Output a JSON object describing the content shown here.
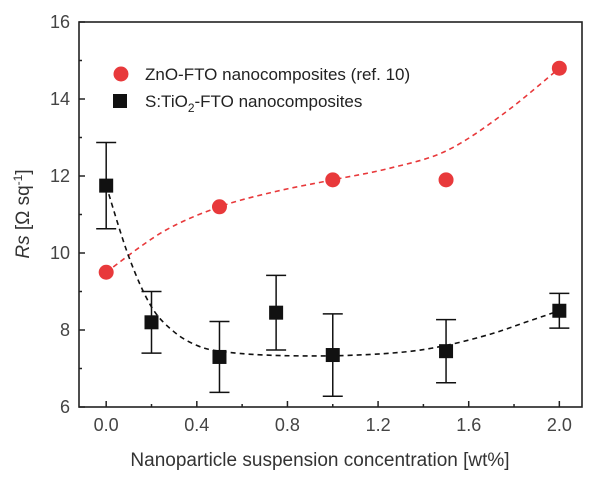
{
  "chart_data": {
    "type": "scatter",
    "xlabel": "Nanoparticle suspension concentration [wt%]",
    "ylabel_italic": "Rs",
    "ylabel_rest": " [Ω sq",
    "ylabel_sup": "-1",
    "ylabel_end": "]",
    "xlim": [
      -0.12,
      2.1
    ],
    "ylim": [
      6,
      16
    ],
    "xticks": [
      "0.0",
      "0.4",
      "0.8",
      "1.2",
      "1.6",
      "2.0"
    ],
    "yticks": [
      "6",
      "8",
      "10",
      "12",
      "14",
      "16"
    ],
    "grid": false,
    "legend_placement": "top-left",
    "series": [
      {
        "name_main": "ZnO-FTO nanocomposites (ref. 10)",
        "marker": "circle",
        "color": "#e8393b",
        "fit_color": "#e8393b",
        "x": [
          0.0,
          0.5,
          1.0,
          1.5,
          2.0
        ],
        "y": [
          9.5,
          11.2,
          11.9,
          11.9,
          14.8
        ],
        "fit": [
          [
            0.0,
            9.5
          ],
          [
            0.25,
            10.55
          ],
          [
            0.5,
            11.2
          ],
          [
            0.75,
            11.6
          ],
          [
            1.0,
            11.9
          ],
          [
            1.25,
            12.2
          ],
          [
            1.5,
            12.65
          ],
          [
            1.75,
            13.6
          ],
          [
            2.0,
            14.8
          ]
        ]
      },
      {
        "name_pre": "S:TiO",
        "name_sub": "2",
        "name_post": "-FTO nanocomposites",
        "marker": "square",
        "color": "#111111",
        "fit_color": "#111111",
        "x": [
          0.0,
          0.2,
          0.5,
          0.75,
          1.0,
          1.5,
          2.0
        ],
        "y": [
          11.75,
          8.2,
          7.3,
          8.45,
          7.35,
          7.45,
          8.5
        ],
        "yerr": [
          1.12,
          0.8,
          0.92,
          0.97,
          1.07,
          0.82,
          0.45
        ],
        "fit": [
          [
            0.0,
            11.75
          ],
          [
            0.1,
            9.9
          ],
          [
            0.2,
            8.6
          ],
          [
            0.3,
            7.95
          ],
          [
            0.4,
            7.6
          ],
          [
            0.5,
            7.45
          ],
          [
            0.7,
            7.35
          ],
          [
            1.0,
            7.33
          ],
          [
            1.3,
            7.42
          ],
          [
            1.5,
            7.6
          ],
          [
            1.7,
            7.9
          ],
          [
            1.85,
            8.2
          ],
          [
            2.0,
            8.5
          ]
        ]
      }
    ]
  }
}
